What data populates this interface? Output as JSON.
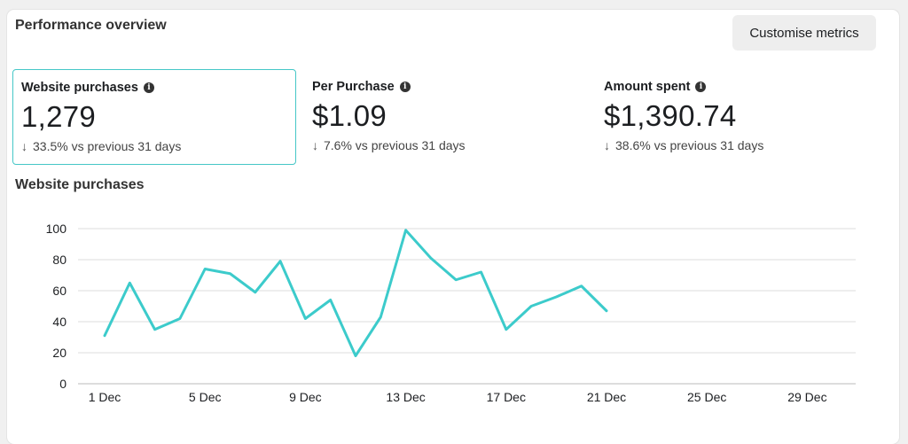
{
  "header": {
    "title": "Performance overview",
    "customise_label": "Customise metrics"
  },
  "metrics": [
    {
      "label": "Website purchases",
      "value": "1,279",
      "delta": "33.5% vs previous 31 days",
      "selected": true
    },
    {
      "label": "Per Purchase",
      "value": "$1.09",
      "delta": "7.6% vs previous 31 days",
      "selected": false
    },
    {
      "label": "Amount spent",
      "value": "$1,390.74",
      "delta": "38.6% vs previous 31 days",
      "selected": false
    }
  ],
  "icons": {
    "info": "info-icon",
    "delta": "arrow-down-icon"
  },
  "colors": {
    "accent": "#3ccbcb",
    "selected_border": "#45c7c7",
    "grid": "#dddddd"
  },
  "chart_title": "Website purchases",
  "chart_data": {
    "type": "line",
    "title": "Website purchases",
    "xlabel": "",
    "ylabel": "",
    "x_ticks": [
      "1 Dec",
      "5 Dec",
      "9 Dec",
      "13 Dec",
      "17 Dec",
      "21 Dec",
      "25 Dec",
      "29 Dec"
    ],
    "x_tick_days": [
      1,
      5,
      9,
      13,
      17,
      21,
      25,
      29
    ],
    "xlim": [
      1,
      31
    ],
    "ylim": [
      0,
      100
    ],
    "y_ticks": [
      0,
      20,
      40,
      60,
      80,
      100
    ],
    "grid": true,
    "series": [
      {
        "x": [
          1,
          2,
          3,
          4,
          5,
          6,
          7,
          8,
          9,
          10,
          11,
          12,
          13,
          14,
          15,
          16,
          17,
          18,
          19,
          20,
          21
        ],
        "values": [
          31,
          65,
          35,
          42,
          74,
          71,
          59,
          79,
          42,
          54,
          18,
          43,
          99,
          81,
          67,
          72,
          35,
          50,
          56,
          63,
          47
        ]
      }
    ]
  }
}
